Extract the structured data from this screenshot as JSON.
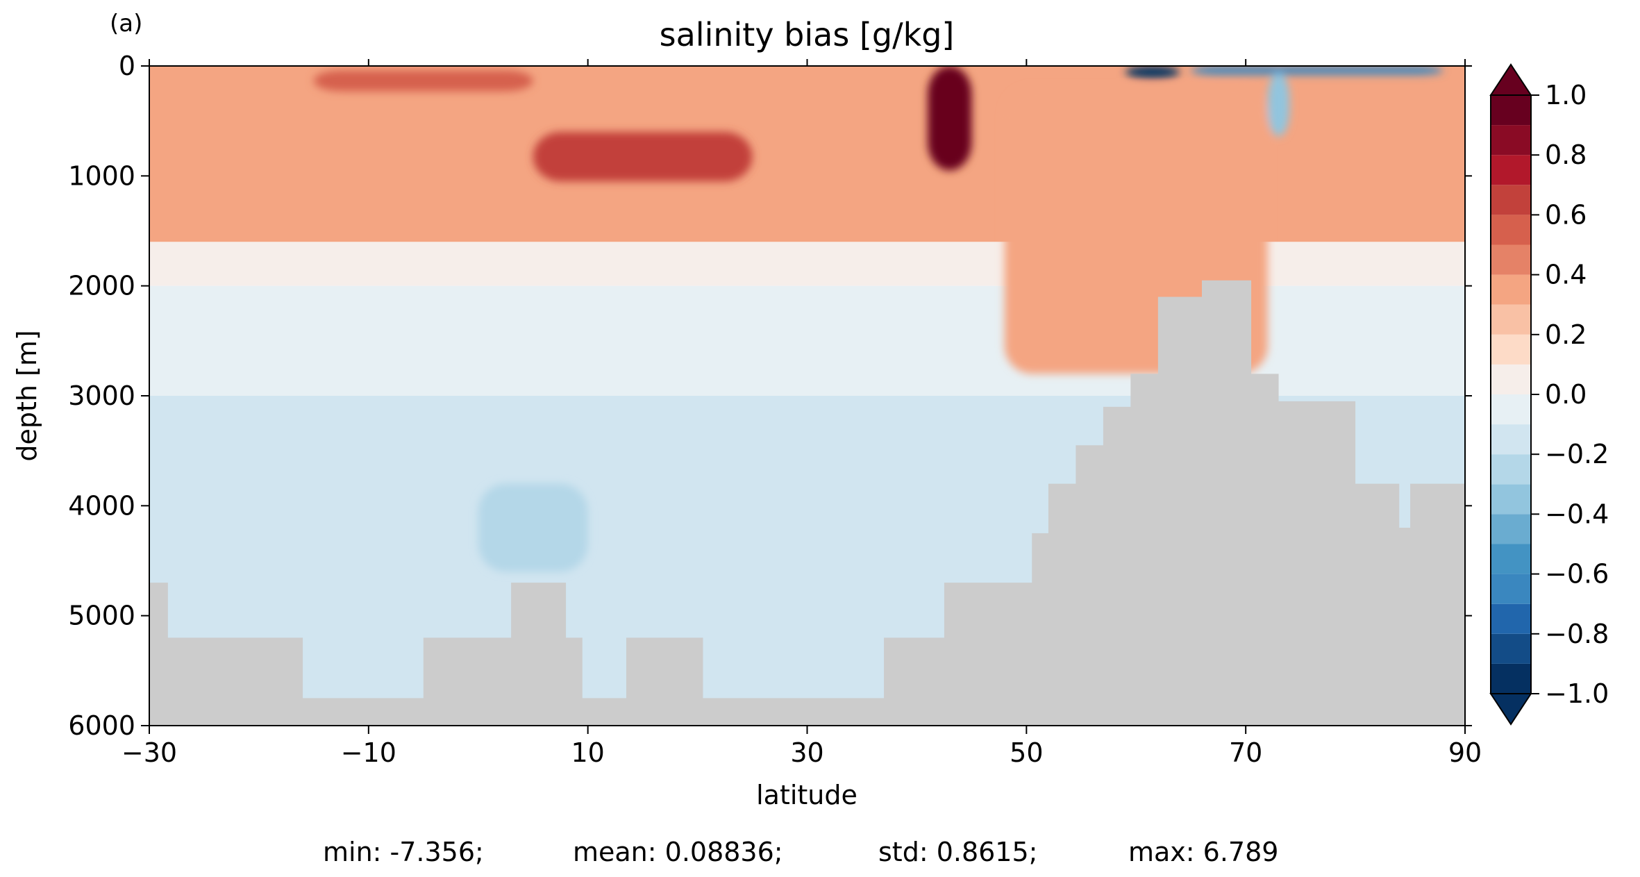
{
  "panel_label": "(a)",
  "chart_data": {
    "type": "heatmap",
    "title": "salinity bias [g/kg]",
    "xlabel": "latitude",
    "ylabel": "depth [m]",
    "xlim": [
      -30,
      90
    ],
    "ylim": [
      0,
      6000
    ],
    "y_inverted": true,
    "xticks": [
      -30,
      -10,
      10,
      30,
      50,
      70,
      90
    ],
    "yticks": [
      0,
      1000,
      2000,
      3000,
      4000,
      5000,
      6000
    ],
    "colorbar": {
      "levels": [
        -1.0,
        -0.9,
        -0.8,
        -0.7,
        -0.6,
        -0.5,
        -0.4,
        -0.3,
        -0.2,
        -0.1,
        0.0,
        0.1,
        0.2,
        0.3,
        0.4,
        0.5,
        0.6,
        0.7,
        0.8,
        0.9,
        1.0
      ],
      "ticks": [
        1.0,
        0.8,
        0.6,
        0.4,
        0.2,
        0.0,
        -0.2,
        -0.4,
        -0.6,
        -0.8,
        -1.0
      ],
      "tick_labels": [
        "1.0",
        "0.8",
        "0.6",
        "0.4",
        "0.2",
        "0.0",
        "−0.2",
        "−0.4",
        "−0.6",
        "−0.8",
        "−1.0"
      ],
      "extend": "both",
      "colormap": "RdBu_r",
      "colors": [
        "#053061",
        "#134c87",
        "#2166ac",
        "#3a87bf",
        "#4393c3",
        "#6aacd0",
        "#92c5de",
        "#b4d7e8",
        "#d1e5f0",
        "#e7f0f4",
        "#f6eeea",
        "#fddbc7",
        "#f9c1a5",
        "#f4a582",
        "#e58267",
        "#d6604d",
        "#c2413b",
        "#b2182b",
        "#8a0b25",
        "#67001f"
      ]
    },
    "background_levels": [
      {
        "depth_top": 0,
        "value": 0.35
      },
      {
        "depth_top": 1600,
        "value": 0.05
      },
      {
        "depth_top": 2000,
        "value": -0.05
      },
      {
        "depth_top": 3000,
        "value": -0.15
      }
    ],
    "anomalies": [
      {
        "lat": [
          5,
          25
        ],
        "depth": [
          600,
          1050
        ],
        "value": 0.65
      },
      {
        "lat": [
          -15,
          5
        ],
        "depth": [
          40,
          230
        ],
        "value": 0.55
      },
      {
        "lat": [
          41,
          45
        ],
        "depth": [
          0,
          950
        ],
        "value": 1.2
      },
      {
        "lat": [
          59,
          64
        ],
        "depth": [
          0,
          110
        ],
        "value": -1.2
      },
      {
        "lat": [
          65,
          88
        ],
        "depth": [
          0,
          80
        ],
        "value": -0.7
      },
      {
        "lat": [
          72,
          74
        ],
        "depth": [
          60,
          640
        ],
        "value": -0.4
      },
      {
        "lat": [
          48,
          72
        ],
        "depth": [
          200,
          2800
        ],
        "value": 0.35
      },
      {
        "lat": [
          0,
          10
        ],
        "depth": [
          3800,
          4600
        ],
        "value": -0.25
      }
    ],
    "bathymetry": {
      "lat": [
        -30,
        -28.3,
        -16,
        -14,
        -12,
        -5,
        3,
        8,
        9.5,
        13.5,
        20.5,
        30,
        37,
        42.5,
        50.5,
        52,
        54.5,
        57,
        59.5,
        62,
        66,
        70.5,
        73,
        80,
        82,
        84,
        85,
        87,
        90
      ],
      "depth": [
        4700,
        5200,
        5750,
        5750,
        5750,
        5200,
        4700,
        5200,
        5750,
        5200,
        5750,
        5750,
        5200,
        4700,
        4250,
        3800,
        3450,
        3100,
        2800,
        2100,
        1950,
        2800,
        3050,
        3800,
        3800,
        4200,
        3800,
        3800,
        3800
      ]
    },
    "stats": {
      "min": "min: -7.356;",
      "mean": "mean: 0.08836;",
      "std": "std: 0.8615;",
      "max": "max: 6.789"
    }
  }
}
